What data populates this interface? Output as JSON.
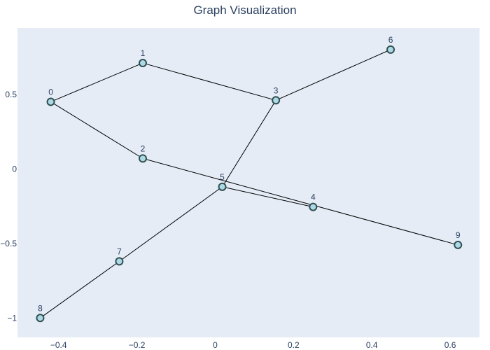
{
  "chart_data": {
    "type": "scatter",
    "title": "Graph Visualization",
    "xlabel": "",
    "ylabel": "",
    "xlim": [
      -0.505,
      0.675
    ],
    "ylim": [
      -1.13,
      0.945
    ],
    "x_ticks": [
      -0.4,
      -0.2,
      0,
      0.2,
      0.4,
      0.6
    ],
    "x_tick_labels": [
      "−0.4",
      "−0.2",
      "0",
      "0.2",
      "0.4",
      "0.6"
    ],
    "y_ticks": [
      0.5,
      0,
      -0.5,
      -1
    ],
    "y_tick_labels": [
      "0.5",
      "0",
      "−0.5",
      "−1"
    ],
    "grid": false,
    "plot_background": "#e5ecf6",
    "node_fill": "#add8e6",
    "node_stroke": "#2f4f4f",
    "edge_color": "#000000",
    "nodes": [
      {
        "label": "0",
        "x": -0.42,
        "y": 0.45
      },
      {
        "label": "1",
        "x": -0.185,
        "y": 0.71
      },
      {
        "label": "2",
        "x": -0.185,
        "y": 0.07
      },
      {
        "label": "3",
        "x": 0.155,
        "y": 0.46
      },
      {
        "label": "4",
        "x": 0.25,
        "y": -0.255
      },
      {
        "label": "5",
        "x": 0.018,
        "y": -0.12
      },
      {
        "label": "6",
        "x": 0.448,
        "y": 0.8
      },
      {
        "label": "7",
        "x": -0.245,
        "y": -0.62
      },
      {
        "label": "8",
        "x": -0.447,
        "y": -1.0
      },
      {
        "label": "9",
        "x": 0.62,
        "y": -0.51
      }
    ],
    "edges": [
      [
        0,
        1
      ],
      [
        0,
        2
      ],
      [
        1,
        3
      ],
      [
        3,
        6
      ],
      [
        3,
        5
      ],
      [
        2,
        9
      ],
      [
        5,
        4
      ],
      [
        5,
        7
      ],
      [
        7,
        8
      ]
    ]
  }
}
